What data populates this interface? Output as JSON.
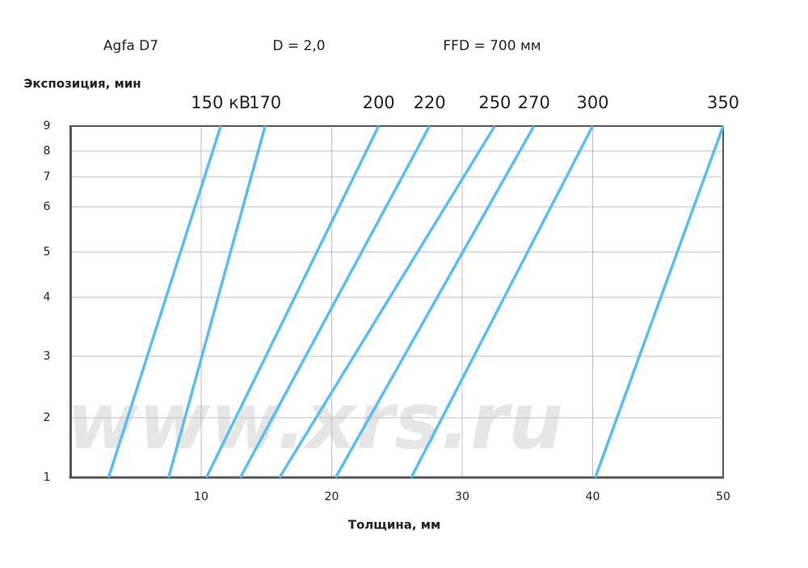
{
  "chart_data": {
    "type": "line",
    "header": [
      "Agfa D7",
      "D = 2,0",
      "FFD = 700 мм"
    ],
    "y_label": "Экспозиция, мин",
    "x_label": "Толщина, мм",
    "watermark": "www.xrs.ru",
    "xlim": [
      0,
      50
    ],
    "xticks": [
      10,
      20,
      30,
      40,
      50
    ],
    "ylim": [
      1,
      9
    ],
    "yticks": [
      1,
      2,
      3,
      4,
      5,
      6,
      7,
      8,
      9
    ],
    "grid": true,
    "color": "#5bbcf0",
    "series": [
      {
        "name": "150 кВ",
        "x": [
          2.9,
          11.5
        ],
        "values": [
          1,
          9
        ]
      },
      {
        "name": "170",
        "x": [
          7.5,
          14.9
        ],
        "values": [
          1,
          9
        ]
      },
      {
        "name": "200",
        "x": [
          10.4,
          23.6
        ],
        "values": [
          1,
          9
        ]
      },
      {
        "name": "220",
        "x": [
          13.0,
          27.5
        ],
        "values": [
          1,
          9
        ]
      },
      {
        "name": "250",
        "x": [
          16.0,
          32.5
        ],
        "values": [
          1,
          9
        ]
      },
      {
        "name": "270",
        "x": [
          20.3,
          35.5
        ],
        "values": [
          1,
          9
        ]
      },
      {
        "name": "300",
        "x": [
          26.1,
          40.0
        ],
        "values": [
          1,
          9
        ]
      },
      {
        "name": "350",
        "x": [
          40.2,
          50.0
        ],
        "values": [
          1,
          9
        ]
      }
    ]
  }
}
